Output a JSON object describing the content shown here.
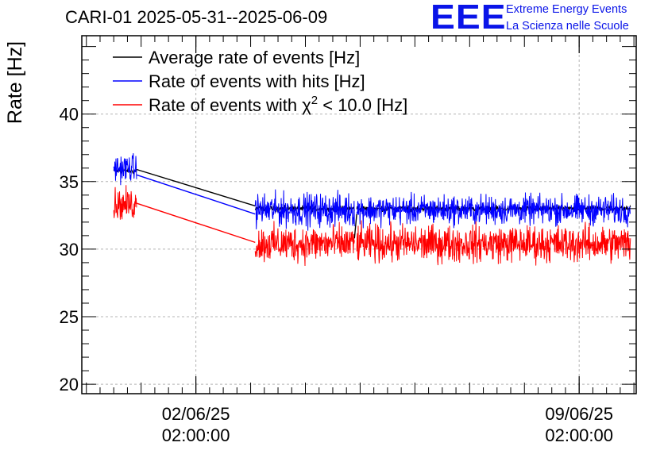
{
  "header": {
    "logo_text": "EEE",
    "logo_line1": "Extreme Energy Events",
    "logo_line2": "La Scienza nelle Scuole",
    "logo_color": "#0a14e8"
  },
  "chart_data": {
    "type": "line",
    "title": "CARI-01 2025-05-31--2025-06-09",
    "ylabel": "Rate [Hz]",
    "xlabel": "",
    "ylim": [
      19.3,
      45.8
    ],
    "xlim": [
      "2025-05-31T00:00",
      "2025-06-10T03:00"
    ],
    "grid": true,
    "yticks": [
      20,
      25,
      30,
      35,
      40
    ],
    "ytick_labels": [
      "20",
      "25",
      "30",
      "35",
      "40"
    ],
    "xticks": [
      {
        "t": "2025-06-02T02:00",
        "date": "02/06/25",
        "time": "02:00:00"
      },
      {
        "t": "2025-06-09T02:00",
        "date": "09/06/25",
        "time": "02:00:00"
      }
    ],
    "legend": {
      "placement": "top-left",
      "entries": [
        {
          "label": "Average rate of events [Hz]",
          "color": "#000000"
        },
        {
          "label": "Rate of events with hits [Hz]",
          "color": "#0000ff"
        },
        {
          "label": "Rate of events with",
          "label_symbol": "χ",
          "label_sup": "2",
          "label_rest": "< 10.0 [Hz]",
          "color": "#ff0000"
        }
      ]
    },
    "series": [
      {
        "name": "Average rate of events",
        "color": "#000000",
        "segments": [
          {
            "start": "2025-05-31T14:00",
            "end": "2025-06-01T00:00",
            "level": 35.8,
            "amplitude": 0.3
          },
          {
            "start": "2025-06-03T04:00",
            "end": "2025-06-04T23:30",
            "level": 33.0,
            "amplitude": 0.3
          },
          {
            "start": "2025-06-05T00:30",
            "end": "2025-06-10T00:30",
            "level": 33.0,
            "amplitude": 0.3
          }
        ],
        "connectors": [
          {
            "from": [
              "2025-06-01T00:00",
              35.9
            ],
            "to": [
              "2025-06-03T04:00",
              33.2
            ]
          },
          {
            "from": [
              "2025-06-04T23:30",
              30.8
            ],
            "to": [
              "2025-06-05T00:30",
              32.6
            ]
          }
        ]
      },
      {
        "name": "Rate of events with hits",
        "color": "#0000ff",
        "segments": [
          {
            "start": "2025-05-31T14:00",
            "end": "2025-06-01T00:00",
            "level": 36.0,
            "amplitude": 1.5
          },
          {
            "start": "2025-06-03T04:00",
            "end": "2025-06-04T23:30",
            "level": 32.9,
            "amplitude": 1.8
          },
          {
            "start": "2025-06-05T00:30",
            "end": "2025-06-10T00:30",
            "level": 32.9,
            "amplitude": 1.6
          }
        ],
        "connectors": [
          {
            "from": [
              "2025-06-01T00:00",
              35.5
            ],
            "to": [
              "2025-06-03T04:00",
              32.6
            ]
          }
        ]
      },
      {
        "name": "Rate of events with chi2 < 10.0",
        "color": "#ff0000",
        "segments": [
          {
            "start": "2025-05-31T14:00",
            "end": "2025-06-01T00:00",
            "level": 33.3,
            "amplitude": 1.7
          },
          {
            "start": "2025-06-03T04:00",
            "end": "2025-06-04T23:30",
            "level": 30.4,
            "amplitude": 2.0
          },
          {
            "start": "2025-06-05T00:30",
            "end": "2025-06-10T00:30",
            "level": 30.4,
            "amplitude": 2.0
          }
        ],
        "connectors": [
          {
            "from": [
              "2025-06-01T00:00",
              33.4
            ],
            "to": [
              "2025-06-03T04:00",
              30.5
            ]
          }
        ]
      }
    ]
  }
}
